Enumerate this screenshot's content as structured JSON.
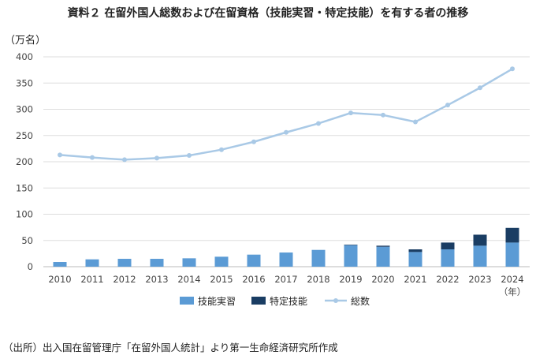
{
  "chart_data": {
    "type": "bar",
    "title": "資料２ 在留外国人総数および在留資格（技能実習・特定技能）を有する者の推移",
    "ylabel": "（万名）",
    "xlabel": "（年）",
    "ylim": [
      0,
      400
    ],
    "yticks": [
      0,
      50,
      100,
      150,
      200,
      250,
      300,
      350,
      400
    ],
    "grid": true,
    "legend_position": "bottom",
    "categories": [
      "2010",
      "2011",
      "2012",
      "2013",
      "2014",
      "2015",
      "2016",
      "2017",
      "2018",
      "2019",
      "2020",
      "2021",
      "2022",
      "2023",
      "2024"
    ],
    "series": [
      {
        "name": "技能実習",
        "type": "stacked-bar",
        "color": "#5b9bd5",
        "values": [
          9,
          14,
          15,
          15,
          16,
          19,
          23,
          27,
          32,
          41,
          38,
          28,
          33,
          40,
          46
        ]
      },
      {
        "name": "特定技能",
        "type": "stacked-bar",
        "color": "#1a3d63",
        "values": [
          0,
          0,
          0,
          0,
          0,
          0,
          0,
          0,
          0,
          1,
          2,
          5,
          13,
          21,
          28
        ]
      },
      {
        "name": "総数",
        "type": "line",
        "color": "#a9c9e6",
        "values": [
          213,
          208,
          204,
          207,
          212,
          223,
          238,
          256,
          273,
          293,
          289,
          276,
          308,
          341,
          377
        ]
      }
    ]
  },
  "source": "（出所）出入国在留管理庁「在留外国人統計」より第一生命経済研究所作成"
}
